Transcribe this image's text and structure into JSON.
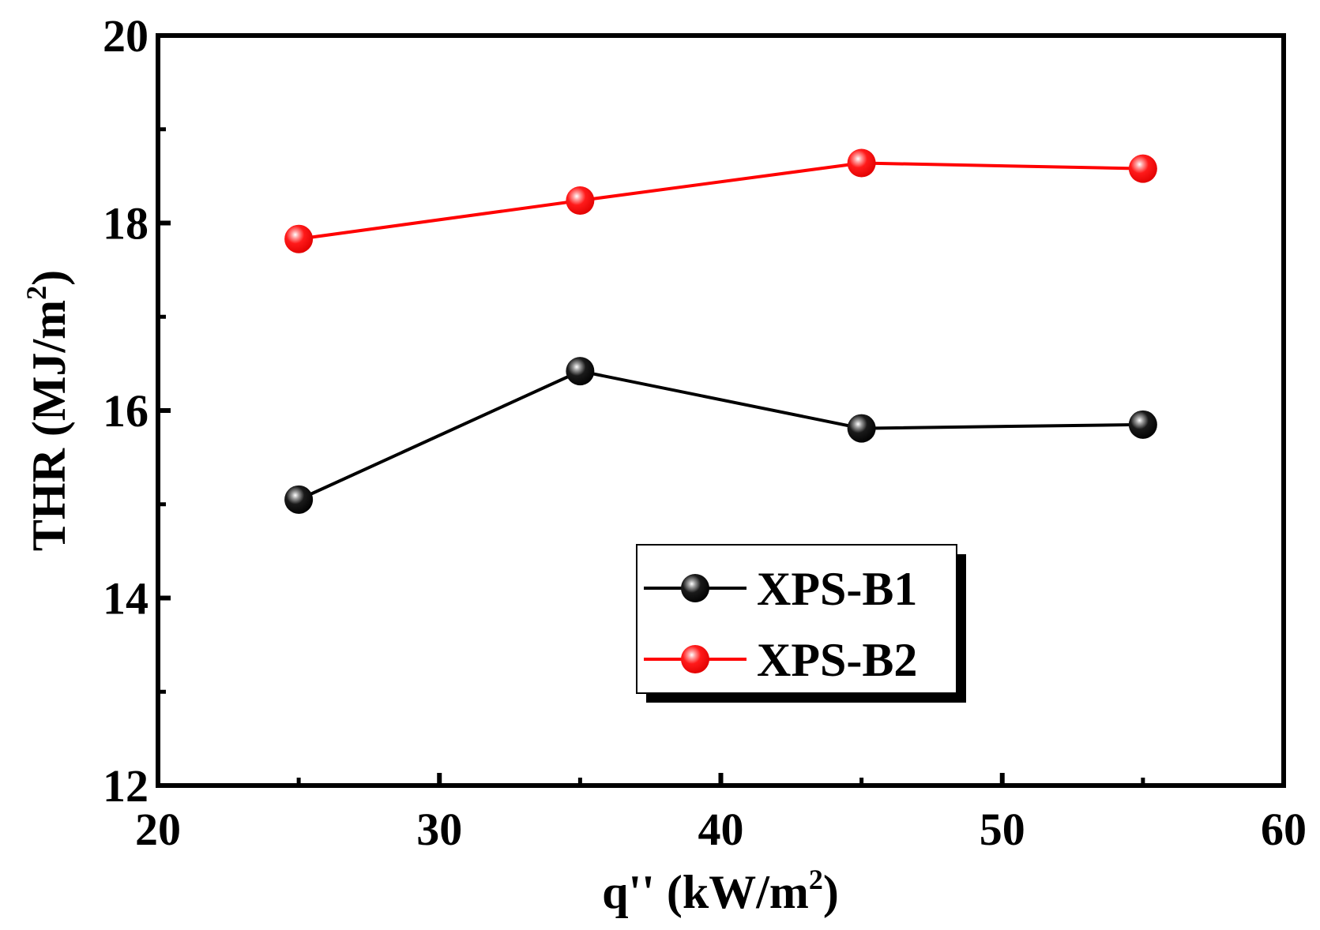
{
  "chart_data": {
    "type": "line",
    "xlabel": {
      "main": "q'' (kW/m",
      "sup": "2",
      "close": ")"
    },
    "ylabel": {
      "main": "THR (MJ/m",
      "sup": "2",
      "close": ")"
    },
    "xlim": [
      20,
      60
    ],
    "ylim": [
      12,
      20
    ],
    "x_ticks": [
      "20",
      "30",
      "40",
      "50",
      "60"
    ],
    "y_ticks": [
      "12",
      "14",
      "16",
      "18",
      "20"
    ],
    "x": [
      25,
      35,
      45,
      55
    ],
    "series": [
      {
        "name": "XPS-B1",
        "color": "#000000",
        "values": [
          15.05,
          16.42,
          15.81,
          15.85
        ]
      },
      {
        "name": "XPS-B2",
        "color": "#ff0000",
        "values": [
          17.83,
          18.24,
          18.64,
          18.58
        ]
      }
    ],
    "legend_position": "lower-right",
    "grid": false
  }
}
